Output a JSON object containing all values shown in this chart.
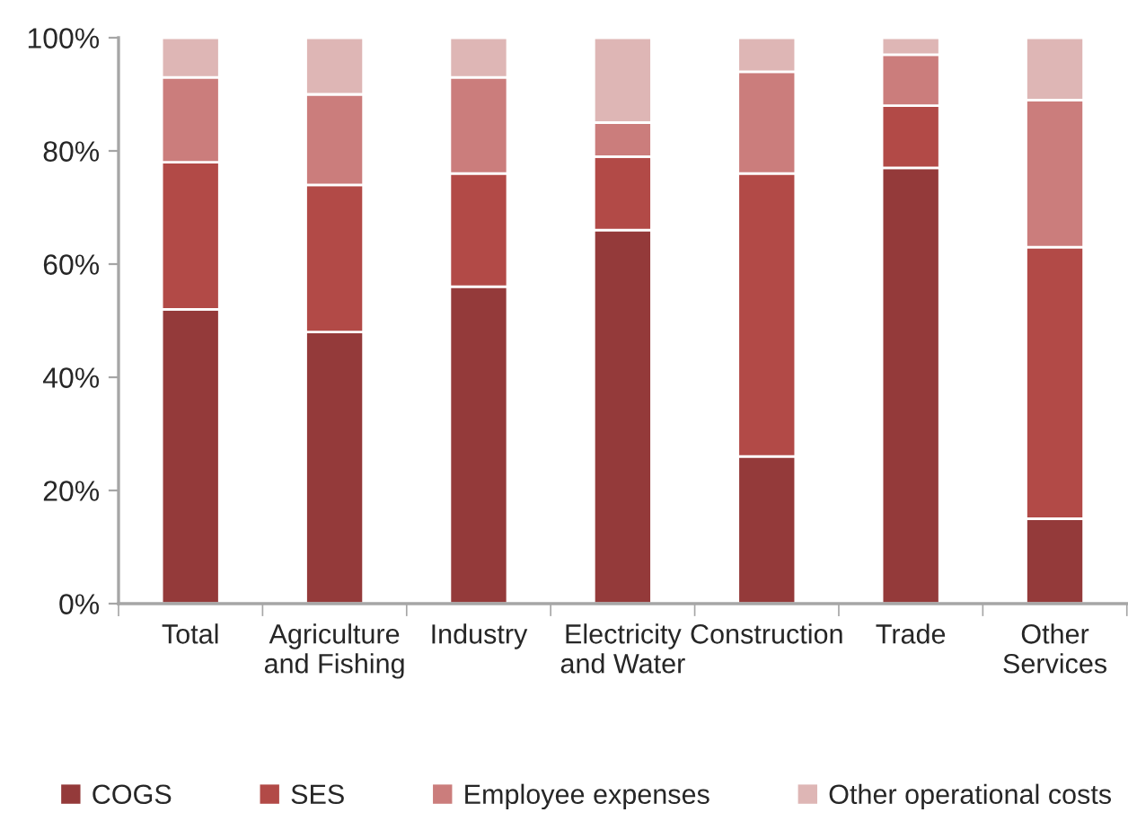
{
  "chart_data": {
    "type": "bar",
    "stacked": true,
    "legend": "bottom",
    "categories": [
      "Total",
      "Agriculture\nand Fishing",
      "Industry",
      "Electricity\nand Water",
      "Construction",
      "Trade",
      "Other\nServices"
    ],
    "series": [
      {
        "name": "COGS",
        "color": "#943a3a",
        "values": [
          52,
          48,
          56,
          66,
          26,
          77,
          15
        ]
      },
      {
        "name": "SES",
        "color": "#b24a47",
        "values": [
          26,
          26,
          20,
          13,
          50,
          11,
          48
        ]
      },
      {
        "name": "Employee expenses",
        "color": "#cb7d7c",
        "values": [
          15,
          16,
          17,
          6,
          18,
          9,
          26
        ]
      },
      {
        "name": "Other operational costs",
        "color": "#deb6b5",
        "values": [
          7,
          10,
          7,
          15,
          6,
          3,
          11
        ]
      }
    ],
    "ylim": [
      0,
      100
    ],
    "yticks": [
      {
        "value": 0,
        "label": "0%"
      },
      {
        "value": 20,
        "label": "20%"
      },
      {
        "value": 40,
        "label": "40%"
      },
      {
        "value": 60,
        "label": "60%"
      },
      {
        "value": 80,
        "label": "80%"
      },
      {
        "value": 100,
        "label": "100%"
      }
    ]
  }
}
